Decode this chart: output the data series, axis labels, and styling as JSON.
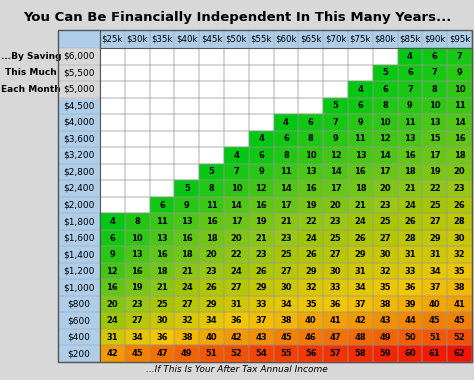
{
  "title": "You Can Be Financially Independent In This Many Years...",
  "subtitle": "...If This Is Your After Tax Annual Income",
  "row_labels": [
    "$6,000",
    "$5,500",
    "$5,000",
    "$4,500",
    "$4,000",
    "$3,600",
    "$3,200",
    "$2,800",
    "$2,400",
    "$2,000",
    "$1,800",
    "$1,600",
    "$1,400",
    "$1,200",
    "$1,000",
    "$800",
    "$600",
    "$400",
    "$200"
  ],
  "col_labels": [
    "$25k",
    "$30k",
    "$35k",
    "$40k",
    "$45k",
    "$50k",
    "$55k",
    "$60k",
    "$65k",
    "$70k",
    "$75k",
    "$80k",
    "$85k",
    "$90k",
    "$95k"
  ],
  "side_labels": [
    "...By Saving",
    "This Much",
    "Each Month"
  ],
  "table_data": [
    [
      null,
      null,
      null,
      null,
      null,
      null,
      null,
      null,
      null,
      null,
      null,
      null,
      4,
      6,
      7
    ],
    [
      null,
      null,
      null,
      null,
      null,
      null,
      null,
      null,
      null,
      null,
      null,
      5,
      6,
      7,
      9
    ],
    [
      null,
      null,
      null,
      null,
      null,
      null,
      null,
      null,
      null,
      null,
      4,
      6,
      7,
      8,
      10
    ],
    [
      null,
      null,
      null,
      null,
      null,
      null,
      null,
      null,
      null,
      5,
      6,
      8,
      9,
      10,
      11
    ],
    [
      null,
      null,
      null,
      null,
      null,
      null,
      null,
      4,
      6,
      7,
      9,
      10,
      11,
      13,
      14
    ],
    [
      null,
      null,
      null,
      null,
      null,
      null,
      4,
      6,
      8,
      9,
      11,
      12,
      13,
      15,
      16
    ],
    [
      null,
      null,
      null,
      null,
      null,
      4,
      6,
      8,
      10,
      12,
      13,
      14,
      16,
      17,
      18
    ],
    [
      null,
      null,
      null,
      null,
      5,
      7,
      9,
      11,
      13,
      14,
      16,
      17,
      18,
      19,
      20
    ],
    [
      null,
      null,
      null,
      5,
      8,
      10,
      12,
      14,
      16,
      17,
      18,
      20,
      21,
      22,
      23
    ],
    [
      null,
      null,
      6,
      9,
      11,
      14,
      16,
      17,
      19,
      20,
      21,
      23,
      24,
      25,
      26
    ],
    [
      4,
      8,
      11,
      13,
      16,
      17,
      19,
      21,
      22,
      23,
      24,
      25,
      26,
      27,
      28
    ],
    [
      6,
      10,
      13,
      16,
      18,
      20,
      21,
      23,
      24,
      25,
      26,
      27,
      28,
      29,
      30
    ],
    [
      9,
      13,
      16,
      18,
      20,
      22,
      23,
      25,
      26,
      27,
      29,
      30,
      31,
      31,
      32
    ],
    [
      12,
      16,
      18,
      21,
      23,
      24,
      26,
      27,
      29,
      30,
      31,
      32,
      33,
      34,
      35
    ],
    [
      16,
      19,
      21,
      24,
      26,
      27,
      29,
      30,
      32,
      33,
      34,
      35,
      36,
      37,
      38
    ],
    [
      20,
      23,
      25,
      27,
      29,
      31,
      33,
      34,
      35,
      36,
      37,
      38,
      39,
      40,
      41
    ],
    [
      24,
      27,
      30,
      32,
      34,
      36,
      37,
      38,
      40,
      41,
      42,
      43,
      44,
      45,
      45
    ],
    [
      31,
      34,
      36,
      38,
      40,
      42,
      43,
      45,
      46,
      47,
      48,
      49,
      50,
      51,
      52
    ],
    [
      42,
      45,
      47,
      49,
      51,
      52,
      54,
      55,
      56,
      57,
      58,
      59,
      60,
      61,
      62
    ]
  ],
  "row_label_col_bg": "#aecde8",
  "col_label_row_bg": "#aecde8",
  "white_cell_color": "#ffffff",
  "grid_color": "#999999",
  "title_fontsize": 9.5,
  "cell_fontsize": 6.0,
  "label_fontsize": 6.5,
  "side_label_fontsize": 6.5,
  "col_label_fontsize": 6.2,
  "background_color": "#d8d8d8"
}
